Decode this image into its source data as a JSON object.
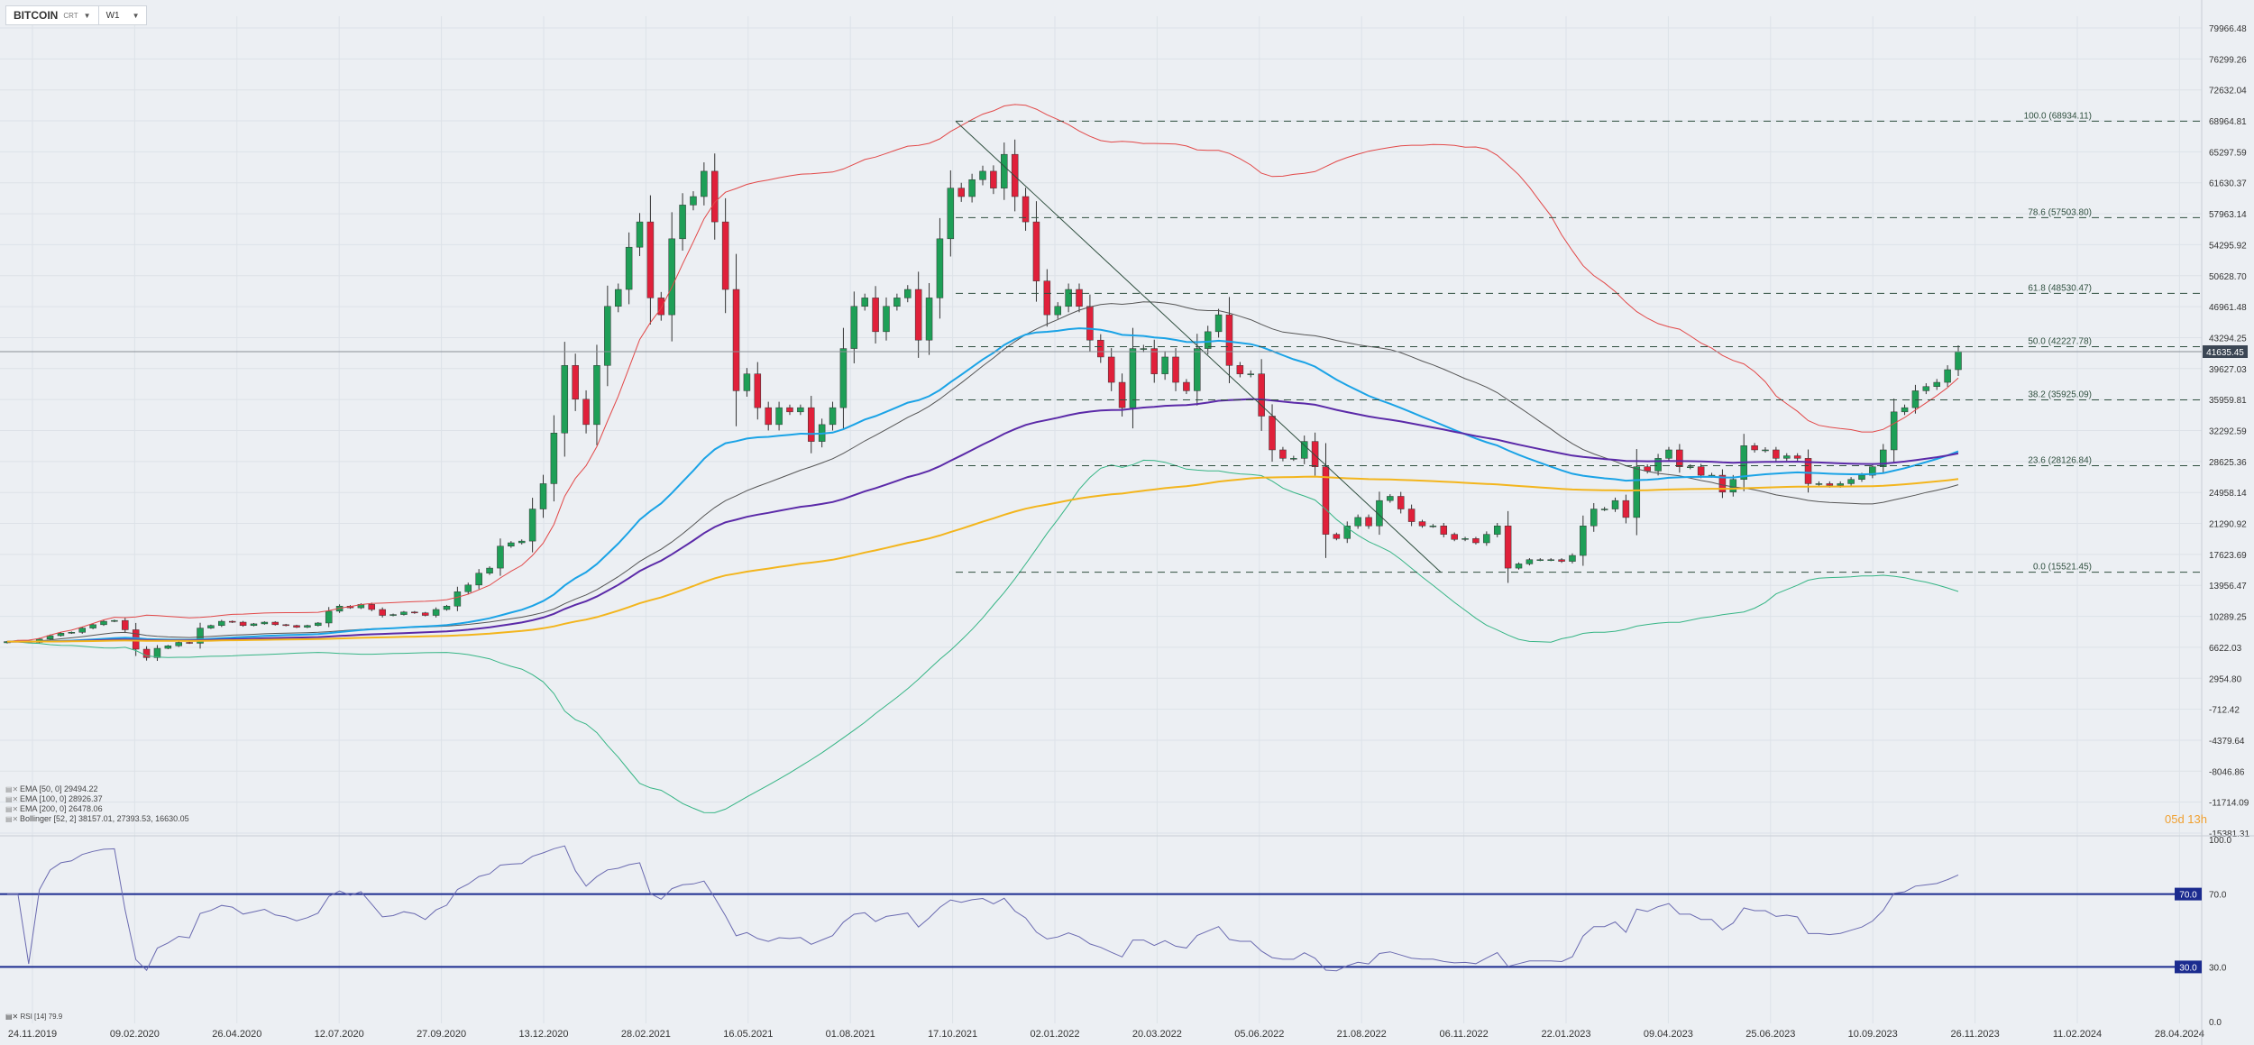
{
  "header": {
    "symbol": "BITCOIN",
    "source": "CRT",
    "timeframe": "W1"
  },
  "countdown": "05d 13h",
  "last_price": "41635.45",
  "legend": [
    {
      "text": "EMA [50, 0] 29494.22"
    },
    {
      "text": "EMA [100, 0] 28926.37"
    },
    {
      "text": "EMA [200, 0] 26478.06"
    },
    {
      "text": "Bollinger [52, 2] 38157.01, 27393.53, 16630.05"
    }
  ],
  "rsi_legend": "RSI [14] 79.9",
  "colors": {
    "bull": "#1e9f57",
    "bear": "#e0203a",
    "ema50": "#1ba3e6",
    "ema100": "#5b2aa8",
    "ema200": "#f3b51d",
    "bb_upper": "#e24848",
    "bb_lower": "#36b585",
    "bb_mid": "#555555",
    "fib": "#2f4f3f",
    "rsi": "#6a6ab0",
    "rsi_levels": "#1b2b8f"
  },
  "chart_data": [
    {
      "type": "candlestick",
      "title": "BITCOIN",
      "x_labels": [
        "24.11.2019",
        "09.02.2020",
        "26.04.2020",
        "12.07.2020",
        "27.09.2020",
        "13.12.2020",
        "28.02.2021",
        "16.05.2021",
        "01.08.2021",
        "17.10.2021",
        "02.01.2022",
        "20.03.2022",
        "05.06.2022",
        "21.08.2022",
        "06.11.2022",
        "22.01.2023",
        "09.04.2023",
        "25.06.2023",
        "10.09.2023",
        "26.11.2023",
        "11.02.2024",
        "28.04.2024"
      ],
      "y_ticks": [
        79966.48,
        76299.26,
        72632.04,
        68964.81,
        65297.59,
        61630.37,
        57963.14,
        54295.92,
        50628.7,
        46961.48,
        43294.25,
        39627.03,
        35959.81,
        32292.59,
        28625.36,
        24958.14,
        21290.92,
        17623.69,
        13956.47,
        10289.25,
        6622.03,
        2954.8,
        -712.42,
        -4379.64,
        -8046.86,
        -11714.09,
        -15381.31
      ],
      "ylim": [
        -15381.31,
        79966.48
      ],
      "weekly_close": [
        7300,
        7400,
        7200,
        7600,
        8000,
        8300,
        8400,
        8900,
        9300,
        9700,
        9800,
        8700,
        6400,
        5400,
        6500,
        6800,
        7200,
        7100,
        8900,
        9200,
        9700,
        9600,
        9200,
        9400,
        9600,
        9300,
        9200,
        9000,
        9200,
        9500,
        10900,
        11500,
        11300,
        11700,
        11100,
        10400,
        10500,
        10800,
        10700,
        10400,
        11100,
        11500,
        13200,
        14000,
        15400,
        16000,
        18600,
        19000,
        19200,
        23000,
        26000,
        32000,
        40000,
        36000,
        33000,
        40000,
        47000,
        49000,
        54000,
        57000,
        48000,
        46000,
        55000,
        59000,
        60000,
        63000,
        57000,
        49000,
        37000,
        39000,
        35000,
        33000,
        35000,
        34500,
        35000,
        31000,
        33000,
        35000,
        42000,
        47000,
        48000,
        44000,
        47000,
        48000,
        49000,
        43000,
        48000,
        55000,
        61000,
        60000,
        62000,
        63000,
        61000,
        65000,
        60000,
        57000,
        50000,
        46000,
        47000,
        49000,
        47000,
        43000,
        41000,
        38000,
        35000,
        42000,
        42000,
        39000,
        41000,
        38000,
        37000,
        42000,
        44000,
        46000,
        40000,
        39000,
        39000,
        34000,
        30000,
        29000,
        29000,
        31000,
        28000,
        20000,
        19500,
        21000,
        22000,
        21000,
        24000,
        24500,
        23000,
        21500,
        21000,
        21000,
        20000,
        19400,
        19500,
        19000,
        20000,
        21000,
        16000,
        16500,
        17000,
        17000,
        17000,
        16800,
        17500,
        21000,
        23000,
        23000,
        24000,
        22000,
        28000,
        27500,
        29000,
        30000,
        28000,
        28000,
        27000,
        27000,
        25000,
        26500,
        30500,
        30000,
        30000,
        29000,
        29300,
        29000,
        26000,
        26000,
        25800,
        26000,
        26500,
        27000,
        28000,
        30000,
        34500,
        35000,
        37000,
        37500,
        38000,
        39500,
        41635
      ]
    },
    {
      "type": "line",
      "title": "RSI [14] 79.9",
      "ylim": [
        0,
        100
      ],
      "y_ticks": [
        0.0,
        30.0,
        70.0,
        100.0
      ],
      "levels": [
        70.0,
        30.0
      ]
    }
  ],
  "fib_levels": [
    {
      "label": "100.0 (68934.11)",
      "value": 68934.11
    },
    {
      "label": "78.6 (57503.80)",
      "value": 57503.8
    },
    {
      "label": "61.8 (48530.47)",
      "value": 48530.47
    },
    {
      "label": "50.0 (42227.78)",
      "value": 42227.78
    },
    {
      "label": "38.2 (35925.09)",
      "value": 35925.09
    },
    {
      "label": "23.6 (28126.84)",
      "value": 28126.84
    },
    {
      "label": "0.0 (15521.45)",
      "value": 15521.45
    }
  ]
}
